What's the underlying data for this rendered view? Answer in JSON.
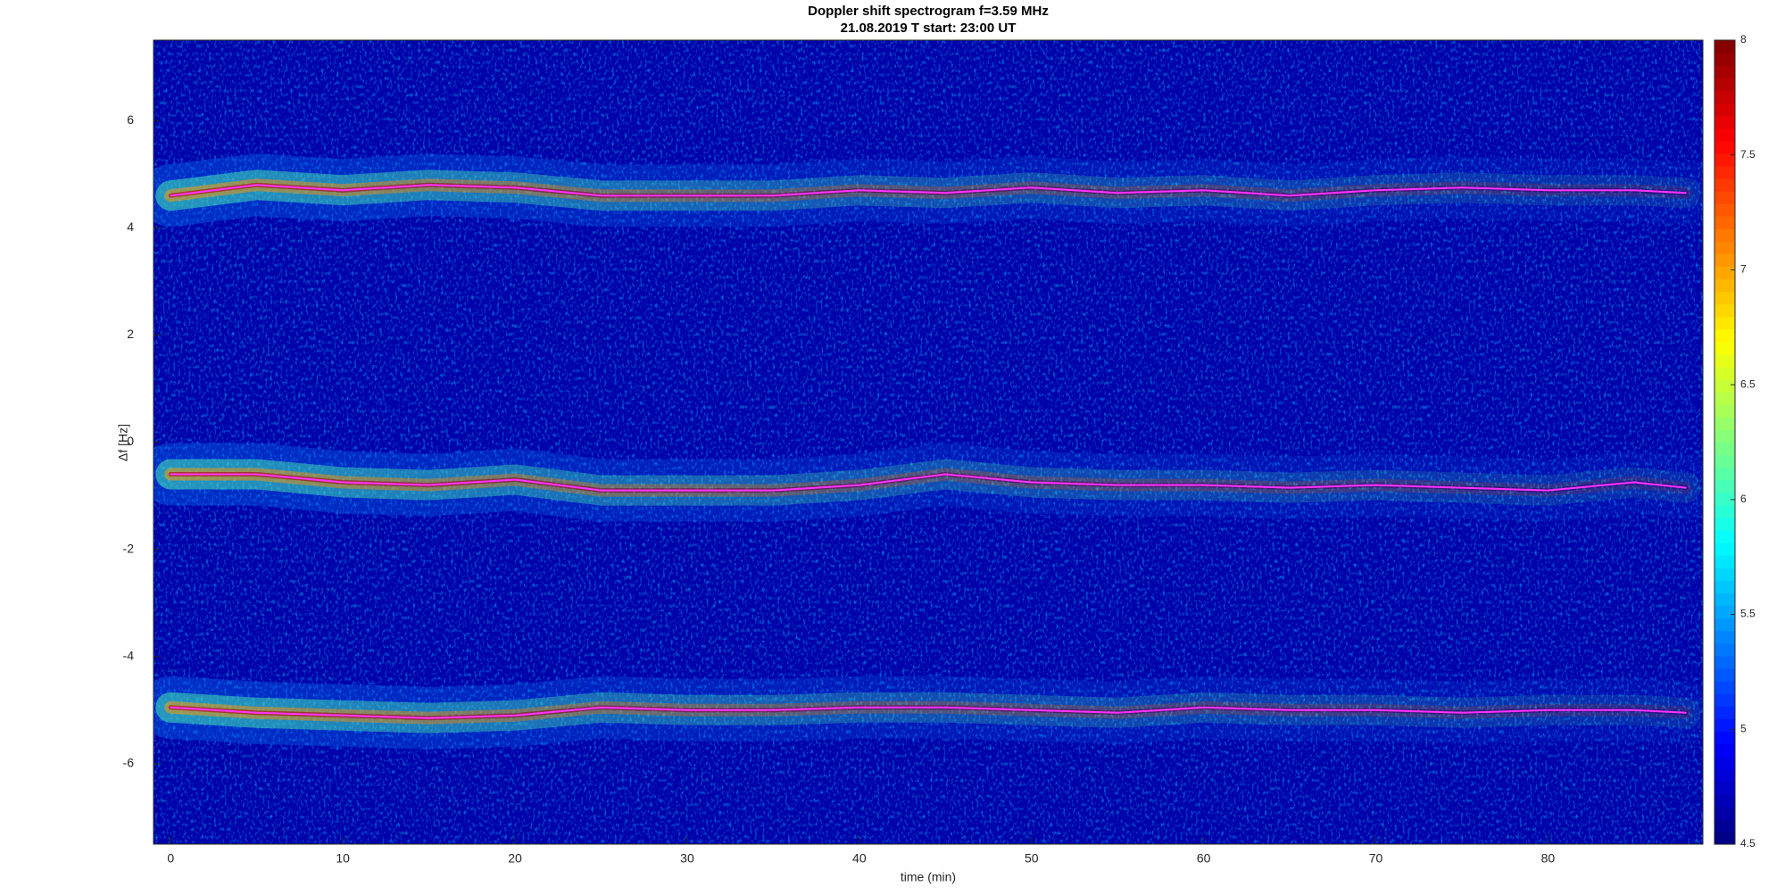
{
  "chart_data": {
    "type": "spectrogram",
    "title": "Doppler shift spectrogram f=3.59 MHz",
    "subtitle": "21.08.2019   T start: 23:00 UT",
    "x_label": "time (min)",
    "y_label": "Δf [Hz]",
    "xlim": [
      -1,
      89
    ],
    "ylim": [
      -7.5,
      7.5
    ],
    "xticks": [
      0,
      10,
      20,
      30,
      40,
      50,
      60,
      70,
      80
    ],
    "yticks": [
      -6,
      -4,
      -2,
      0,
      2,
      4,
      6
    ],
    "colormap": "jet",
    "clim": [
      4.5,
      8
    ],
    "cticks": [
      4.5,
      5,
      5.5,
      6,
      6.5,
      7,
      7.5,
      8
    ],
    "x": [
      0,
      5,
      10,
      15,
      20,
      25,
      30,
      35,
      40,
      45,
      50,
      55,
      60,
      65,
      70,
      75,
      80,
      85,
      88
    ],
    "series": [
      {
        "color": "#ff33ff",
        "values": [
          4.6,
          4.8,
          4.7,
          4.8,
          4.75,
          4.6,
          4.6,
          4.6,
          4.7,
          4.65,
          4.75,
          4.65,
          4.7,
          4.6,
          4.7,
          4.75,
          4.7,
          4.7,
          4.65
        ]
      },
      {
        "color": "#ff33ff",
        "values": [
          -0.6,
          -0.6,
          -0.75,
          -0.8,
          -0.7,
          -0.9,
          -0.9,
          -0.9,
          -0.8,
          -0.6,
          -0.75,
          -0.8,
          -0.8,
          -0.85,
          -0.8,
          -0.85,
          -0.9,
          -0.75,
          -0.85
        ]
      },
      {
        "color": "#ff33ff",
        "values": [
          -4.95,
          -5.05,
          -5.1,
          -5.15,
          -5.1,
          -4.95,
          -5.0,
          -5.0,
          -4.95,
          -4.95,
          -5.0,
          -5.05,
          -4.95,
          -5.0,
          -5.0,
          -5.05,
          -5.0,
          -5.0,
          -5.05
        ]
      }
    ]
  }
}
